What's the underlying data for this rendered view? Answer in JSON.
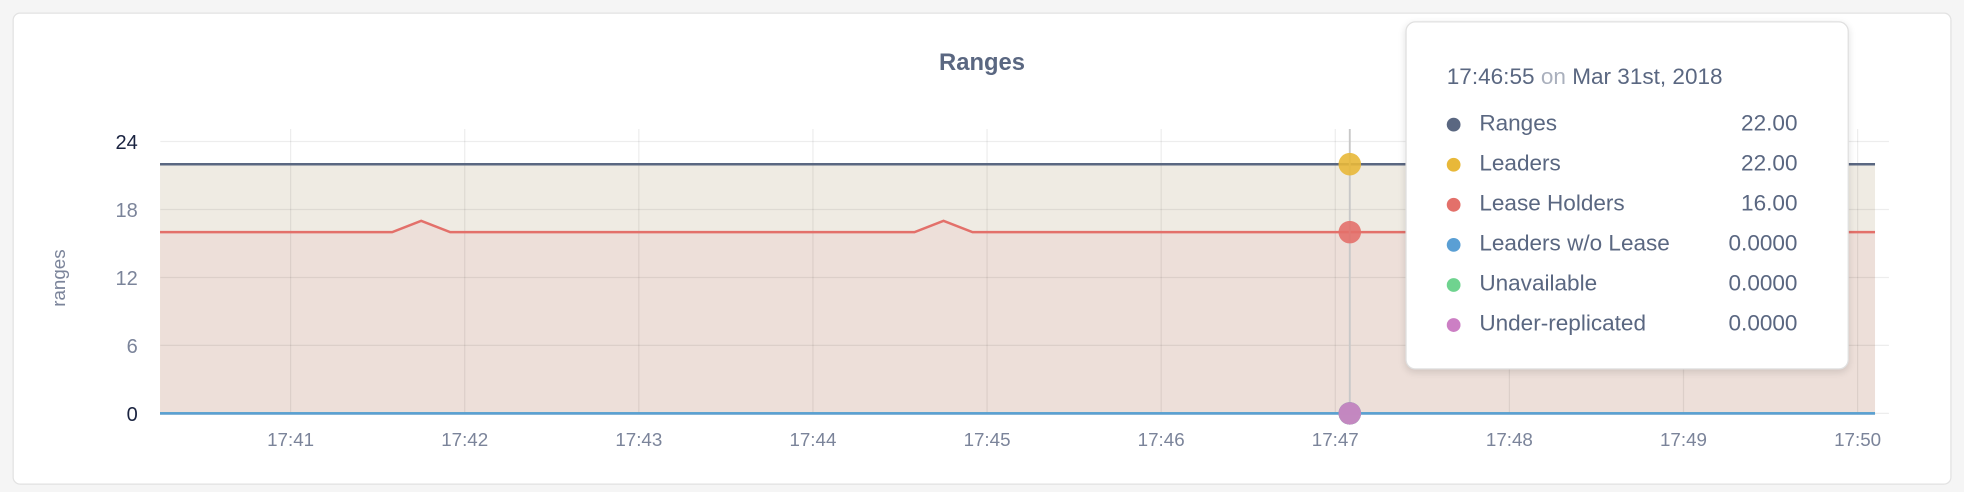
{
  "chart_data": {
    "type": "area",
    "title": "Ranges",
    "ylabel": "ranges",
    "xlabel": "",
    "ylim": [
      0,
      24
    ],
    "yticks": [
      "0",
      "6",
      "12",
      "18",
      "24"
    ],
    "xticks": [
      "17:41",
      "17:42",
      "17:43",
      "17:44",
      "17:45",
      "17:46",
      "17:47",
      "17:48",
      "17:49",
      "17:50"
    ],
    "x_range": [
      "17:40:15",
      "17:50:06"
    ],
    "grid": true,
    "series": [
      {
        "name": "Ranges",
        "color": "#5a6781",
        "points": [
          [
            "17:40:15",
            22
          ],
          [
            "17:50:06",
            22
          ]
        ]
      },
      {
        "name": "Leaders",
        "color": "#e8b839",
        "fill": "#efebe3",
        "points": [
          [
            "17:40:15",
            22
          ],
          [
            "17:50:06",
            22
          ]
        ]
      },
      {
        "name": "Lease Holders",
        "color": "#e3706a",
        "fill": "#eddfd9",
        "points": [
          [
            "17:40:15",
            16
          ],
          [
            "17:41:35",
            16
          ],
          [
            "17:41:45",
            17
          ],
          [
            "17:41:55",
            16
          ],
          [
            "17:44:35",
            16
          ],
          [
            "17:44:45",
            17
          ],
          [
            "17:44:55",
            16
          ],
          [
            "17:50:06",
            16
          ]
        ]
      },
      {
        "name": "Leaders w/o Lease",
        "color": "#5a9fd4",
        "points": [
          [
            "17:40:15",
            0
          ],
          [
            "17:50:06",
            0
          ]
        ]
      },
      {
        "name": "Unavailable",
        "color": "#6fd38f",
        "points": [
          [
            "17:40:15",
            0
          ],
          [
            "17:50:06",
            0
          ]
        ]
      },
      {
        "name": "Under-replicated",
        "color": "#cc7fc4",
        "points": [
          [
            "17:40:15",
            0
          ],
          [
            "17:50:06",
            0
          ]
        ]
      }
    ],
    "hover_time": "17:47:05"
  },
  "tooltip": {
    "time": "17:46:55",
    "on": "on",
    "date": "Mar 31st, 2018",
    "rows": [
      {
        "label": "Ranges",
        "value": "22.00",
        "color": "#5a6781"
      },
      {
        "label": "Leaders",
        "value": "22.00",
        "color": "#e8b839"
      },
      {
        "label": "Lease Holders",
        "value": "16.00",
        "color": "#e3706a"
      },
      {
        "label": "Leaders w/o Lease",
        "value": "0.0000",
        "color": "#5a9fd4"
      },
      {
        "label": "Unavailable",
        "value": "0.0000",
        "color": "#6fd38f"
      },
      {
        "label": "Under-replicated",
        "value": "0.0000",
        "color": "#cc7fc4"
      }
    ]
  }
}
